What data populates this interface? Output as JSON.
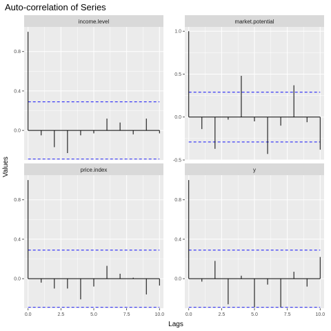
{
  "chart_data": {
    "type": "bar",
    "title": "Auto-correlation of Series",
    "xlabel": "Lags",
    "ylabel": "Values",
    "colors": {
      "panel_bg": "#ebebeb",
      "strip_bg": "#d9d9d9",
      "grid": "#ffffff",
      "bar": "#000000",
      "conf": "#3b3bf5"
    },
    "panels": [
      {
        "name": "income.level",
        "x": [
          0,
          1,
          2,
          3,
          4,
          5,
          6,
          7,
          8,
          9,
          10
        ],
        "values": [
          1.0,
          -0.05,
          -0.17,
          -0.23,
          -0.05,
          -0.03,
          0.12,
          0.08,
          -0.04,
          0.12,
          -0.03
        ],
        "conf": [
          0.29,
          -0.29
        ],
        "ylim": [
          -0.3,
          1.05
        ],
        "yticks": [
          0.0,
          0.4,
          0.8
        ],
        "ytick_labels": [
          "0.0",
          "0.4",
          "0.8"
        ]
      },
      {
        "name": "market.potential",
        "x": [
          0,
          1,
          2,
          3,
          4,
          5,
          6,
          7,
          8,
          9,
          10
        ],
        "values": [
          1.0,
          -0.14,
          -0.37,
          -0.03,
          0.48,
          -0.05,
          -0.43,
          -0.1,
          0.37,
          -0.06,
          -0.38
        ],
        "conf": [
          0.29,
          -0.29
        ],
        "ylim": [
          -0.5,
          1.05
        ],
        "yticks": [
          -0.5,
          0.0,
          0.5,
          1.0
        ],
        "ytick_labels": [
          "-0.5",
          "0.0",
          "0.5",
          "1.0"
        ]
      },
      {
        "name": "price.index",
        "x": [
          0,
          1,
          2,
          3,
          4,
          5,
          6,
          7,
          8,
          9,
          10
        ],
        "values": [
          1.0,
          -0.04,
          -0.1,
          -0.1,
          -0.21,
          -0.08,
          0.13,
          0.05,
          0.01,
          -0.16,
          -0.07
        ],
        "conf": [
          0.29,
          -0.29
        ],
        "ylim": [
          -0.3,
          1.05
        ],
        "yticks": [
          0.0,
          0.4,
          0.8
        ],
        "ytick_labels": [
          "0.0",
          "0.4",
          "0.8"
        ]
      },
      {
        "name": "y",
        "x": [
          0,
          1,
          2,
          3,
          4,
          5,
          6,
          7,
          8,
          9,
          10
        ],
        "values": [
          1.0,
          -0.03,
          0.18,
          -0.26,
          0.03,
          -0.29,
          -0.06,
          -0.29,
          0.07,
          -0.08,
          0.22
        ],
        "conf": [
          0.29,
          -0.29
        ],
        "ylim": [
          -0.3,
          1.05
        ],
        "yticks": [
          0.0,
          0.4,
          0.8
        ],
        "ytick_labels": [
          "0.0",
          "0.4",
          "0.8"
        ]
      }
    ],
    "xlim": [
      -0.3,
      10.3
    ],
    "xticks": [
      0,
      2.5,
      5,
      7.5,
      10
    ],
    "xtick_labels": [
      "0.0",
      "2.5",
      "5.0",
      "7.5",
      "10.0"
    ],
    "xticks_visible_on": [
      "price.index",
      "y"
    ]
  }
}
